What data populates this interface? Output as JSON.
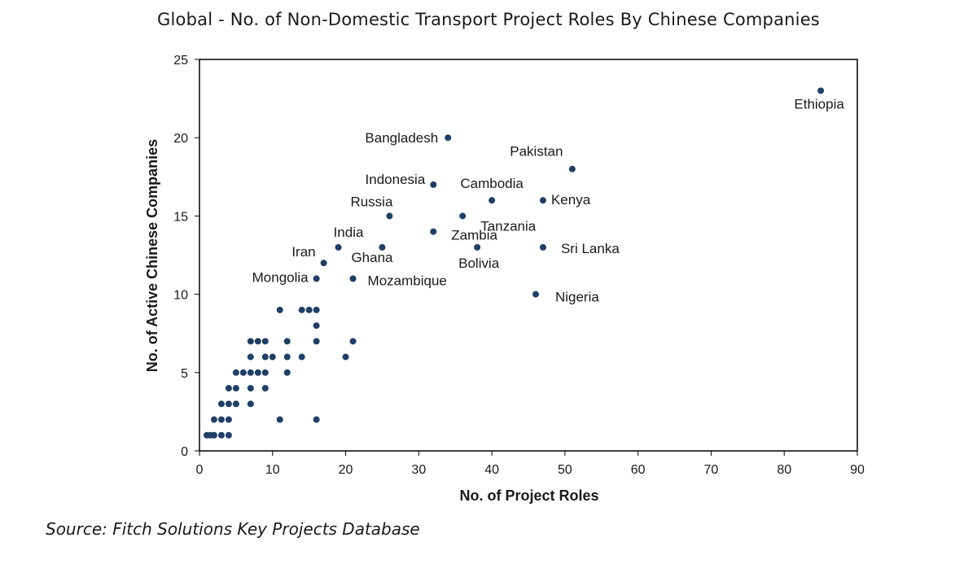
{
  "chart_data": {
    "type": "scatter",
    "title": "Global - No. of Non-Domestic Transport Project Roles By Chinese Companies",
    "xlabel": "No. of Project Roles",
    "ylabel": "No. of Active Chinese Companies",
    "xlim": [
      0,
      90
    ],
    "ylim": [
      0,
      25
    ],
    "xticks": [
      0,
      10,
      20,
      30,
      40,
      50,
      60,
      70,
      80,
      90
    ],
    "yticks": [
      0,
      5,
      10,
      15,
      20,
      25
    ],
    "grid": false,
    "labeled_points": [
      {
        "label": "Ethiopia",
        "x": 85,
        "y": 23
      },
      {
        "label": "Bangladesh",
        "x": 34,
        "y": 20
      },
      {
        "label": "Pakistan",
        "x": 51,
        "y": 18
      },
      {
        "label": "Indonesia",
        "x": 32,
        "y": 17
      },
      {
        "label": "Cambodia",
        "x": 40,
        "y": 16
      },
      {
        "label": "Kenya",
        "x": 47,
        "y": 16
      },
      {
        "label": "Russia",
        "x": 26,
        "y": 15
      },
      {
        "label": "Tanzania",
        "x": 36,
        "y": 15
      },
      {
        "label": "Zambia",
        "x": 32,
        "y": 14
      },
      {
        "label": "India",
        "x": 19,
        "y": 13
      },
      {
        "label": "Ghana",
        "x": 25,
        "y": 13
      },
      {
        "label": "Bolivia",
        "x": 38,
        "y": 13
      },
      {
        "label": "Sri Lanka",
        "x": 47,
        "y": 13
      },
      {
        "label": "Iran",
        "x": 17,
        "y": 12
      },
      {
        "label": "Mongolia",
        "x": 16,
        "y": 11
      },
      {
        "label": "Mozambique",
        "x": 21,
        "y": 11
      },
      {
        "label": "Nigeria",
        "x": 46,
        "y": 10
      }
    ],
    "unlabeled_points": [
      [
        11,
        9
      ],
      [
        14,
        9
      ],
      [
        15,
        9
      ],
      [
        16,
        9
      ],
      [
        16,
        8
      ],
      [
        7,
        7
      ],
      [
        8,
        7
      ],
      [
        9,
        7
      ],
      [
        12,
        7
      ],
      [
        16,
        7
      ],
      [
        21,
        7
      ],
      [
        7,
        6
      ],
      [
        9,
        6
      ],
      [
        10,
        6
      ],
      [
        12,
        6
      ],
      [
        14,
        6
      ],
      [
        20,
        6
      ],
      [
        5,
        5
      ],
      [
        6,
        5
      ],
      [
        7,
        5
      ],
      [
        8,
        5
      ],
      [
        9,
        5
      ],
      [
        12,
        5
      ],
      [
        4,
        4
      ],
      [
        5,
        4
      ],
      [
        7,
        4
      ],
      [
        9,
        4
      ],
      [
        3,
        3
      ],
      [
        4,
        3
      ],
      [
        5,
        3
      ],
      [
        7,
        3
      ],
      [
        2,
        2
      ],
      [
        3,
        2
      ],
      [
        4,
        2
      ],
      [
        11,
        2
      ],
      [
        16,
        2
      ],
      [
        1,
        1
      ],
      [
        1.5,
        1
      ],
      [
        2,
        1
      ],
      [
        3,
        1
      ],
      [
        4,
        1
      ]
    ]
  },
  "source": "Source: Fitch Solutions Key Projects Database"
}
